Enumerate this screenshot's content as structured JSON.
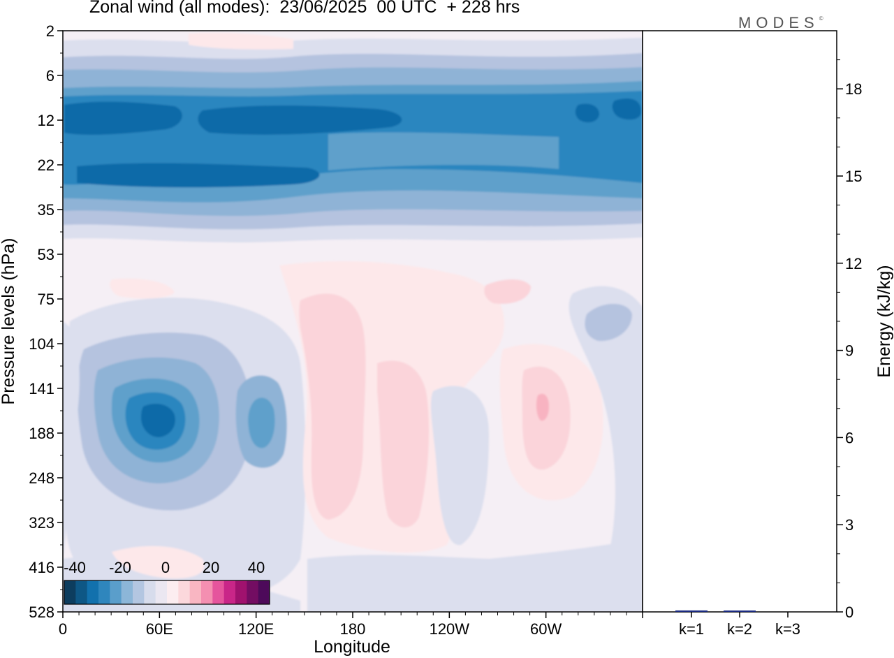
{
  "chart_data": [
    {
      "type": "heatmap",
      "title": "Zonal wind (all modes):  23/06/2025  00 UTC  + 228 hrs",
      "ylabel": "Pressure levels (hPa)",
      "xlabel": "Longitude",
      "y_ticks": [
        "2",
        "6",
        "12",
        "22",
        "35",
        "53",
        "75",
        "104",
        "141",
        "188",
        "248",
        "323",
        "416",
        "528"
      ],
      "x_ticks": [
        "0",
        "60E",
        "120E",
        "180",
        "120W",
        "60W"
      ],
      "colorbar": {
        "ticks": [
          "-40",
          "-20",
          "0",
          "20",
          "40"
        ],
        "colors": [
          "#0d3d5e",
          "#0e5785",
          "#1271ad",
          "#2f86bd",
          "#5a9ecb",
          "#8cb6d8",
          "#b3c6e1",
          "#d7dcec",
          "#ebe7f1",
          "#fcedf0",
          "#fcd8dc",
          "#f9b6c2",
          "#f48fb1",
          "#e5559d",
          "#c92688",
          "#a0126e",
          "#730d62",
          "#4d0a5a"
        ]
      },
      "field_colors": {
        "blue_core": "#086aa8",
        "blue_strong": "#2c86bf",
        "blue_medium": "#5fa0cb",
        "blue_light": "#8fb3d6",
        "blue_pale": "#b5c3df",
        "lavender": "#dcdfee",
        "neutral": "#f5eff5",
        "pink_pale": "#fde8ea",
        "pink_light": "#fbd4da",
        "pink_medium": "#f8b3c1"
      }
    },
    {
      "type": "bar",
      "ylabel": "Energy (kJ/kg)",
      "categories": [
        "k=1",
        "k=2",
        "k=3"
      ],
      "values": [
        0.05,
        0.03,
        0.0
      ],
      "ylim": [
        0,
        20
      ],
      "y_ticks": [
        "0",
        "3",
        "6",
        "9",
        "12",
        "15",
        "18"
      ],
      "bar_color": "#1a2a80"
    }
  ],
  "logo": {
    "text": "MODES",
    "mark": "©"
  }
}
